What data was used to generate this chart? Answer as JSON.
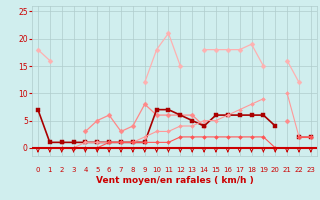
{
  "x": [
    0,
    1,
    2,
    3,
    4,
    5,
    6,
    7,
    8,
    9,
    10,
    11,
    12,
    13,
    14,
    15,
    16,
    17,
    18,
    19,
    20,
    21,
    22,
    23
  ],
  "series": [
    {
      "label": "line1_light_pink",
      "color": "#FFB0B0",
      "linewidth": 0.9,
      "marker": "D",
      "markersize": 2.5,
      "y": [
        18,
        16,
        null,
        null,
        null,
        null,
        null,
        null,
        null,
        12,
        18,
        21,
        15,
        null,
        18,
        18,
        18,
        18,
        19,
        15,
        null,
        16,
        12,
        null
      ]
    },
    {
      "label": "line2_medium_pink",
      "color": "#FF8888",
      "linewidth": 0.9,
      "marker": "D",
      "markersize": 2.5,
      "y": [
        null,
        null,
        1,
        null,
        3,
        5,
        6,
        3,
        4,
        8,
        6,
        6,
        6,
        6,
        4,
        null,
        null,
        null,
        null,
        null,
        null,
        5,
        null,
        null
      ]
    },
    {
      "label": "line3_dark_red",
      "color": "#AA0000",
      "linewidth": 1.2,
      "marker": "s",
      "markersize": 2.5,
      "y": [
        7,
        1,
        1,
        1,
        1,
        1,
        1,
        1,
        1,
        1,
        7,
        7,
        6,
        5,
        4,
        6,
        6,
        6,
        6,
        6,
        4,
        null,
        2,
        2
      ]
    },
    {
      "label": "line4_light_red",
      "color": "#FF9999",
      "linewidth": 0.8,
      "marker": "D",
      "markersize": 2.0,
      "y": [
        null,
        null,
        0,
        0,
        1,
        1,
        1,
        1,
        1,
        2,
        3,
        3,
        4,
        4,
        5,
        5,
        6,
        7,
        8,
        9,
        null,
        10,
        2,
        2
      ]
    },
    {
      "label": "line5_red",
      "color": "#FF5555",
      "linewidth": 0.8,
      "marker": "D",
      "markersize": 2.0,
      "y": [
        null,
        null,
        0,
        0,
        0,
        0,
        1,
        1,
        1,
        1,
        1,
        1,
        2,
        2,
        2,
        2,
        2,
        2,
        2,
        2,
        0,
        null,
        2,
        2
      ]
    }
  ],
  "xlabel": "Vent moyen/en rafales ( km/h )",
  "xlim": [
    -0.5,
    23.5
  ],
  "ylim": [
    -1.5,
    26
  ],
  "yticks": [
    0,
    5,
    10,
    15,
    20,
    25
  ],
  "xticks": [
    0,
    1,
    2,
    3,
    4,
    5,
    6,
    7,
    8,
    9,
    10,
    11,
    12,
    13,
    14,
    15,
    16,
    17,
    18,
    19,
    20,
    21,
    22,
    23
  ],
  "grid_color": "#B0CCCC",
  "bg_color": "#D0EEEE",
  "axis_color": "#CC0000",
  "tick_color": "#CC0000",
  "label_color": "#CC0000",
  "arrow_color": "#CC0000",
  "baseline_color": "#CC0000"
}
